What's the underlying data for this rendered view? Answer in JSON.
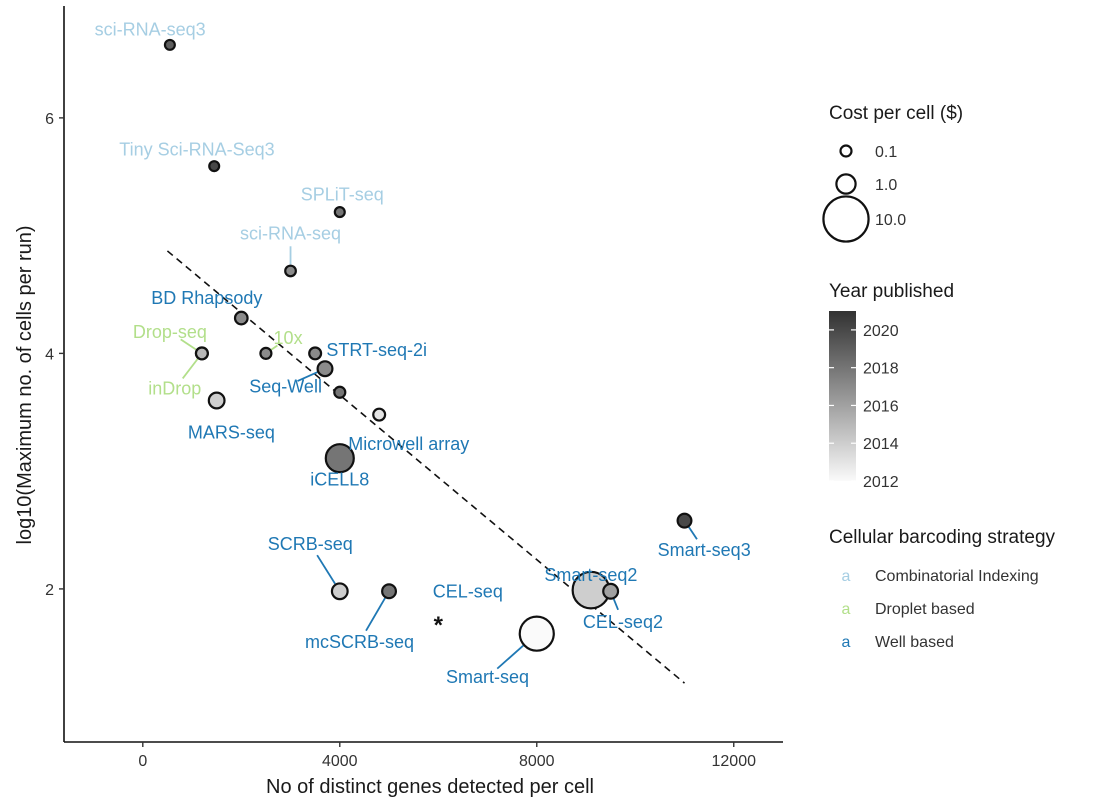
{
  "chart_data": {
    "type": "scatter",
    "xlabel": "No of distinct genes detected per cell",
    "ylabel": "log10(Maximum no. of cells per run)",
    "xlim": [
      -1600,
      13000
    ],
    "ylim": [
      0.7,
      6.95
    ],
    "x_ticks": [
      {
        "value": 0,
        "label": "0"
      },
      {
        "value": 4000,
        "label": "4000"
      },
      {
        "value": 8000,
        "label": "8000"
      },
      {
        "value": 12000,
        "label": "12000"
      }
    ],
    "y_ticks": [
      {
        "value": 2,
        "label": "2"
      },
      {
        "value": 4,
        "label": "4"
      },
      {
        "value": 6,
        "label": "6"
      }
    ],
    "grid": false,
    "strategy_colors": {
      "Combinatorial Indexing": "#a6cee3",
      "Droplet based": "#b2df8a",
      "Well based": "#1f78b4"
    },
    "points": [
      {
        "label": "sci-RNA-seq3",
        "x": 550,
        "y": 6.62,
        "cost": 0.05,
        "year": 2019,
        "strategy": "Combinatorial Indexing",
        "label_x": 150,
        "label_y": 6.75,
        "leader": false
      },
      {
        "label": "Tiny Sci-RNA-Seq3",
        "x": 1450,
        "y": 5.59,
        "cost": 0.05,
        "year": 2020,
        "strategy": "Combinatorial Indexing",
        "label_x": 1100,
        "label_y": 5.73,
        "leader": false
      },
      {
        "label": "SPLiT-seq",
        "x": 4000,
        "y": 5.2,
        "cost": 0.05,
        "year": 2018,
        "strategy": "Combinatorial Indexing",
        "label_x": 4050,
        "label_y": 5.35,
        "leader": false
      },
      {
        "label": "sci-RNA-seq",
        "x": 3000,
        "y": 4.7,
        "cost": 0.08,
        "year": 2017,
        "strategy": "Combinatorial Indexing",
        "label_x": 3000,
        "label_y": 5.02,
        "leader": true
      },
      {
        "label": "BD Rhapsody",
        "x": 2000,
        "y": 4.3,
        "cost": 0.2,
        "year": 2017,
        "strategy": "Well based",
        "label_x": 1300,
        "label_y": 4.47,
        "leader": false
      },
      {
        "label": "Drop-seq",
        "x": 1200,
        "y": 4.0,
        "cost": 0.15,
        "year": 2015,
        "strategy": "Droplet based",
        "label_x": 550,
        "label_y": 4.18,
        "leader": true
      },
      {
        "label": "10x",
        "x": 2500,
        "y": 4.0,
        "cost": 0.1,
        "year": 2017,
        "strategy": "Droplet based",
        "label_x": 2950,
        "label_y": 4.13,
        "leader": true
      },
      {
        "label": "inDrop",
        "x": 1200,
        "y": 4.0,
        "cost": 0.15,
        "year": 2015,
        "strategy": "Droplet based",
        "label_x": 650,
        "label_y": 3.7,
        "leader": true
      },
      {
        "label": "STRT-seq-2i",
        "x": 3500,
        "y": 4.0,
        "cost": 0.15,
        "year": 2017,
        "strategy": "Well based",
        "label_x": 4750,
        "label_y": 4.03,
        "leader": false
      },
      {
        "label": "Seq-Well",
        "x": 3700,
        "y": 3.87,
        "cost": 0.4,
        "year": 2017,
        "strategy": "Well based",
        "label_x": 2900,
        "label_y": 3.72,
        "leader": true
      },
      {
        "label": "MARS-seq",
        "x": 1500,
        "y": 3.6,
        "cost": 0.5,
        "year": 2014,
        "strategy": "Well based",
        "label_x": 1800,
        "label_y": 3.33,
        "leader": false
      },
      {
        "label": "Microwell array",
        "x": 4000,
        "y": 3.67,
        "cost": 0.1,
        "year": 2018,
        "strategy": "Well based",
        "label_x": 5400,
        "label_y": 3.23,
        "leader": false
      },
      {
        "label": "Microwell array",
        "x": 4800,
        "y": 3.48,
        "cost": 0.15,
        "year": 2013,
        "strategy": "Well based",
        "label_x": 5400,
        "label_y": 3.23,
        "leader": false
      },
      {
        "label": "iCELL8",
        "x": 4000,
        "y": 3.11,
        "cost": 3.0,
        "year": 2018,
        "strategy": "Well based",
        "label_x": 4000,
        "label_y": 2.93,
        "leader": false
      },
      {
        "label": "Smart-seq3",
        "x": 11000,
        "y": 2.58,
        "cost": 0.3,
        "year": 2020,
        "strategy": "Well based",
        "label_x": 11400,
        "label_y": 2.33,
        "leader": true
      },
      {
        "label": "SCRB-seq",
        "x": 4000,
        "y": 1.98,
        "cost": 0.5,
        "year": 2014,
        "strategy": "Well based",
        "label_x": 3400,
        "label_y": 2.38,
        "leader": true
      },
      {
        "label": "mcSCRB-seq",
        "x": 5000,
        "y": 1.98,
        "cost": 0.3,
        "year": 2018,
        "strategy": "Well based",
        "label_x": 4400,
        "label_y": 1.55,
        "leader": true
      },
      {
        "label": "Smart-seq2",
        "x": 9100,
        "y": 1.99,
        "cost": 6.0,
        "year": 2014,
        "strategy": "Well based",
        "label_x": 9100,
        "label_y": 2.12,
        "leader": false
      },
      {
        "label": "CEL-seq2",
        "x": 9500,
        "y": 1.98,
        "cost": 0.4,
        "year": 2016,
        "strategy": "Well based",
        "label_x": 9750,
        "label_y": 1.72,
        "leader": true
      },
      {
        "label": "CEL-seq",
        "x": 6000,
        "y": 1.7,
        "cost": 0,
        "year": null,
        "marker": "*",
        "strategy": "Well based",
        "label_x": 6600,
        "label_y": 1.98,
        "leader": false
      },
      {
        "label": "Smart-seq",
        "x": 8000,
        "y": 1.62,
        "cost": 5.0,
        "year": 2012,
        "strategy": "Well based",
        "label_x": 7000,
        "label_y": 1.25,
        "leader": true
      }
    ],
    "trend_line": {
      "x": [
        500,
        11000
      ],
      "y": [
        4.87,
        1.2
      ],
      "style": "dashed"
    },
    "legend": {
      "cost": {
        "title": "Cost per cell ($)",
        "entries": [
          {
            "label": "0.1",
            "value": 0.1
          },
          {
            "label": "1.0",
            "value": 1.0
          },
          {
            "label": "10.0",
            "value": 10.0
          }
        ]
      },
      "year": {
        "title": "Year published",
        "min": 2012,
        "max": 2021,
        "ticks": [
          "2012",
          "2014",
          "2016",
          "2018",
          "2020"
        ]
      },
      "strategy": {
        "title": "Cellular barcoding strategy",
        "key_glyph": "a",
        "entries": [
          "Combinatorial Indexing",
          "Droplet based",
          "Well based"
        ]
      },
      "placement": "right"
    }
  }
}
